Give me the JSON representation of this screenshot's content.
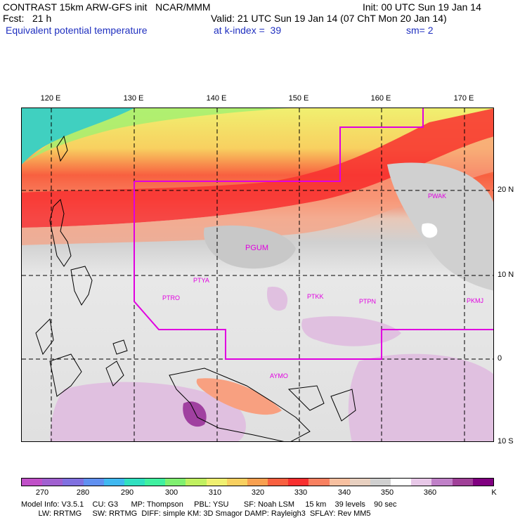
{
  "header": {
    "title_left": "CONTRAST 15km ARW-GFS init   NCAR/MMM",
    "init": "Init: 00 UTC Sun 19 Jan 14",
    "fcst": "Fcst:   21 h",
    "valid": "Valid: 21 UTC Sun 19 Jan 14 (07 ChT Mon 20 Jan 14)",
    "field": "Equivalent potential temperature",
    "level": "at k-index =  39",
    "smoothing": "sm= 2"
  },
  "map": {
    "lon_labels": [
      "120 E",
      "130 E",
      "140 E",
      "150 E",
      "160 E",
      "170 E"
    ],
    "lat_labels": [
      "20 N",
      "10 N",
      "0",
      "10 S"
    ],
    "stations": [
      "PWAK",
      "PGUM",
      "PTYA",
      "PTRO",
      "PTKK",
      "PTPN",
      "PKMJ",
      "AYMO"
    ]
  },
  "colorbar": {
    "colors": [
      "#c050c8",
      "#a060d0",
      "#8070e0",
      "#6090f0",
      "#40b8f0",
      "#30e0c0",
      "#40f0a0",
      "#80f070",
      "#c0f060",
      "#f0f070",
      "#f8d060",
      "#f8a050",
      "#f86040",
      "#f83030",
      "#f88060",
      "#f8c0a0",
      "#e8d0c0",
      "#d0d0d0",
      "#ffffff",
      "#e8c8e8",
      "#c080c8",
      "#a04098",
      "#800080"
    ],
    "labels": [
      "270",
      "280",
      "290",
      "300",
      "310",
      "320",
      "330",
      "340",
      "350",
      "360",
      "K"
    ]
  },
  "footer": {
    "line1": "Model Info: V3.5.1    CU: G3      MP: Thompson     PBL: YSU       SF: Noah LSM     15 km    39 levels    90 sec",
    "line2": "        LW: RRTMG     SW: RRTMG  DIFF: simple KM: 3D Smagor DAMP: Rayleigh3  SFLAY: Rev MM5"
  }
}
